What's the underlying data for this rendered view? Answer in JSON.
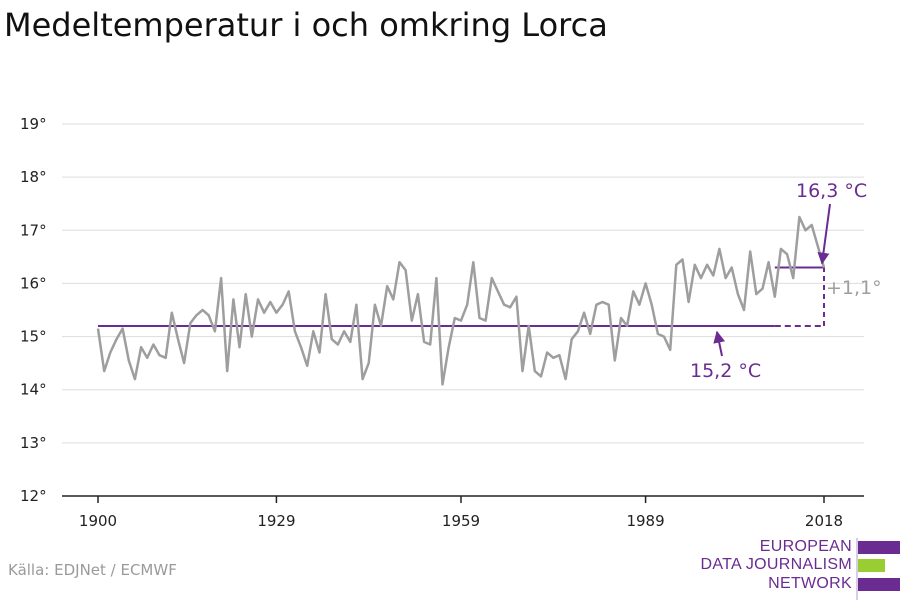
{
  "title": "Medeltemperatur i och omkring Lorca",
  "source": "Källa: EDJNet / ECMWF",
  "logo": {
    "lines": [
      "EUROPEAN",
      "DATA JOURNALISM",
      "NETWORK"
    ],
    "colors": [
      "#6a2c91",
      "#9acd32",
      "#6a2c91"
    ]
  },
  "colors": {
    "series": "#9e9e9e",
    "accent": "#6a2c91",
    "grid": "#dddddd",
    "axis": "#222222"
  },
  "chart_data": {
    "type": "line",
    "title": "Medeltemperatur i och omkring Lorca",
    "xlabel": "",
    "ylabel": "",
    "xlim": [
      1900,
      2018
    ],
    "ylim": [
      12,
      19
    ],
    "x_ticks": [
      1900,
      1929,
      1959,
      1989,
      2018
    ],
    "x_tick_labels": [
      "1900",
      "1929",
      "1959",
      "1989",
      "2018"
    ],
    "y_ticks": [
      12,
      13,
      14,
      15,
      16,
      17,
      18,
      19
    ],
    "y_tick_labels": [
      "12°",
      "13°",
      "14°",
      "15°",
      "16°",
      "17°",
      "18°",
      "19°"
    ],
    "grid": true,
    "series": [
      {
        "x_start": 1900,
        "x_end": 2018,
        "values": [
          15.15,
          14.35,
          14.7,
          14.95,
          15.15,
          14.55,
          14.2,
          14.8,
          14.6,
          14.85,
          14.65,
          14.6,
          15.45,
          14.95,
          14.5,
          15.25,
          15.4,
          15.5,
          15.4,
          15.1,
          16.1,
          14.35,
          15.7,
          14.8,
          15.8,
          15.0,
          15.7,
          15.45,
          15.65,
          15.45,
          15.6,
          15.85,
          15.1,
          14.8,
          14.45,
          15.1,
          14.7,
          15.8,
          14.95,
          14.85,
          15.1,
          14.9,
          15.6,
          14.2,
          14.5,
          15.6,
          15.2,
          15.95,
          15.7,
          16.4,
          16.25,
          15.3,
          15.8,
          14.9,
          14.85,
          16.1,
          14.1,
          14.8,
          15.35,
          15.3,
          15.6,
          16.4,
          15.35,
          15.3,
          16.1,
          15.85,
          15.6,
          15.55,
          15.75,
          14.35,
          15.2,
          14.35,
          14.25,
          14.7,
          14.6,
          14.65,
          14.2,
          14.95,
          15.1,
          15.45,
          15.05,
          15.6,
          15.65,
          15.6,
          14.55,
          15.35,
          15.2,
          15.85,
          15.6,
          16.0,
          15.6,
          15.05,
          15.0,
          14.75,
          16.35,
          16.45,
          15.65,
          16.35,
          16.1,
          16.35,
          16.15,
          16.65,
          16.1,
          16.3,
          15.8,
          15.5,
          16.6,
          15.8,
          15.9,
          16.4,
          15.75,
          16.65,
          16.55,
          16.1,
          17.25,
          17.0,
          17.1,
          16.7,
          16.3
        ]
      }
    ],
    "baseline": {
      "value": 15.2,
      "x_start": 1900,
      "x_end": 2010,
      "dashed_to": 2018,
      "label": "15,2 °C"
    },
    "recent": {
      "value": 16.3,
      "x_start": 2010,
      "x_end": 2018,
      "label": "16,3 °C"
    },
    "difference_label": "+1,1°"
  }
}
